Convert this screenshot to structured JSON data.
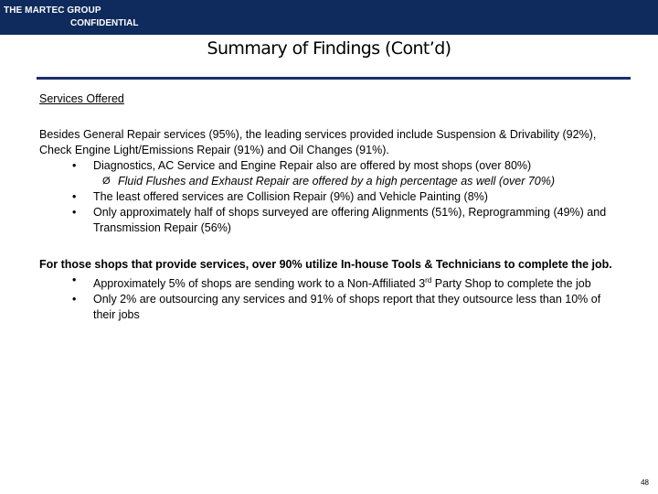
{
  "header": {
    "company": "THE MARTEC GROUP",
    "confidential": "CONFIDENTIAL",
    "bar_color": "#0f2a5c"
  },
  "title": "Summary of Findings (Cont’d)",
  "section1": {
    "heading": "Services Offered",
    "lead": "Besides General Repair services (95%), the leading services provided include Suspension & Drivability (92%), Check Engine Light/Emissions Repair (91%) and Oil Changes (91%).",
    "bullet1": "Diagnostics, AC Service and Engine Repair also are offered by most shops (over 80%)",
    "sub1": "Fluid Flushes and Exhaust Repair are offered by a high percentage as well (over 70%)",
    "bullet2": "The least offered services are Collision Repair (9%) and Vehicle Painting (8%)",
    "bullet3": "Only approximately half of shops surveyed are offering Alignments (51%), Reprogramming (49%) and Transmission Repair (56%)"
  },
  "section2": {
    "lead": "For those shops that provide services, over 90% utilize In-house Tools & Technicians to complete the job.",
    "bullet1_pre": "Approximately 5% of shops are sending work to a Non-Affiliated 3",
    "bullet1_sup": "rd",
    "bullet1_post": " Party Shop to complete the job",
    "bullet2": "Only 2% are outsourcing any services and 91% of shops report that they outsource less than 10% of their jobs"
  },
  "symbols": {
    "bullet": "•",
    "arrow": "Ø"
  },
  "page_number": "48"
}
